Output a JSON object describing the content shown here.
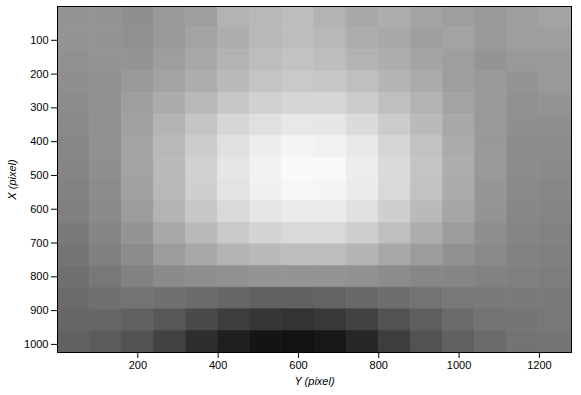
{
  "chart_data": {
    "type": "heatmap",
    "x_label": "Y (pixel)",
    "y_label": "X (pixel)",
    "xlim": [
      0,
      1280
    ],
    "ylim": [
      0,
      1024
    ],
    "xticks": [
      200,
      400,
      600,
      800,
      1000,
      1200
    ],
    "yticks": [
      100,
      200,
      300,
      400,
      500,
      600,
      700,
      800,
      900,
      1000
    ],
    "color": "gray",
    "zlim": [
      0,
      100
    ],
    "x_bins": [
      0,
      80,
      160,
      240,
      320,
      400,
      480,
      560,
      640,
      720,
      800,
      880,
      960,
      1040,
      1120,
      1200,
      1280
    ],
    "y_bins": [
      0,
      64,
      128,
      192,
      256,
      320,
      384,
      448,
      512,
      576,
      640,
      704,
      768,
      832,
      896,
      960,
      1024
    ],
    "values": [
      [
        58,
        58,
        56,
        60,
        62,
        70,
        72,
        74,
        70,
        66,
        68,
        64,
        62,
        60,
        62,
        64
      ],
      [
        58,
        58,
        57,
        60,
        64,
        68,
        72,
        74,
        72,
        68,
        66,
        62,
        64,
        60,
        62,
        62
      ],
      [
        57,
        58,
        58,
        62,
        66,
        70,
        74,
        76,
        74,
        70,
        68,
        64,
        62,
        58,
        60,
        60
      ],
      [
        56,
        57,
        60,
        64,
        68,
        73,
        77,
        79,
        78,
        75,
        71,
        67,
        62,
        60,
        58,
        60
      ],
      [
        55,
        57,
        62,
        67,
        72,
        78,
        82,
        84,
        84,
        80,
        75,
        70,
        64,
        60,
        57,
        58
      ],
      [
        54,
        57,
        63,
        70,
        77,
        84,
        88,
        91,
        90,
        86,
        80,
        73,
        66,
        60,
        56,
        56
      ],
      [
        53,
        57,
        64,
        72,
        80,
        88,
        93,
        96,
        95,
        91,
        84,
        76,
        67,
        60,
        55,
        55
      ],
      [
        52,
        56,
        64,
        73,
        82,
        90,
        95,
        98,
        98,
        93,
        86,
        77,
        68,
        60,
        55,
        54
      ],
      [
        51,
        55,
        63,
        72,
        81,
        89,
        94,
        97,
        96,
        92,
        85,
        76,
        67,
        59,
        54,
        53
      ],
      [
        50,
        54,
        61,
        70,
        78,
        85,
        90,
        92,
        92,
        88,
        81,
        73,
        65,
        58,
        53,
        52
      ],
      [
        48,
        52,
        58,
        66,
        73,
        79,
        83,
        85,
        85,
        81,
        75,
        68,
        61,
        56,
        52,
        51
      ],
      [
        46,
        50,
        55,
        61,
        66,
        70,
        73,
        74,
        74,
        71,
        66,
        61,
        57,
        54,
        51,
        50
      ],
      [
        44,
        47,
        51,
        54,
        56,
        57,
        58,
        58,
        58,
        57,
        55,
        53,
        52,
        51,
        50,
        49
      ],
      [
        42,
        44,
        45,
        44,
        42,
        40,
        38,
        38,
        39,
        41,
        43,
        45,
        47,
        48,
        48,
        48
      ],
      [
        40,
        40,
        38,
        34,
        29,
        24,
        21,
        20,
        22,
        26,
        32,
        37,
        42,
        45,
        46,
        47
      ],
      [
        38,
        36,
        32,
        26,
        18,
        12,
        8,
        7,
        9,
        15,
        24,
        32,
        38,
        42,
        45,
        46
      ]
    ]
  }
}
